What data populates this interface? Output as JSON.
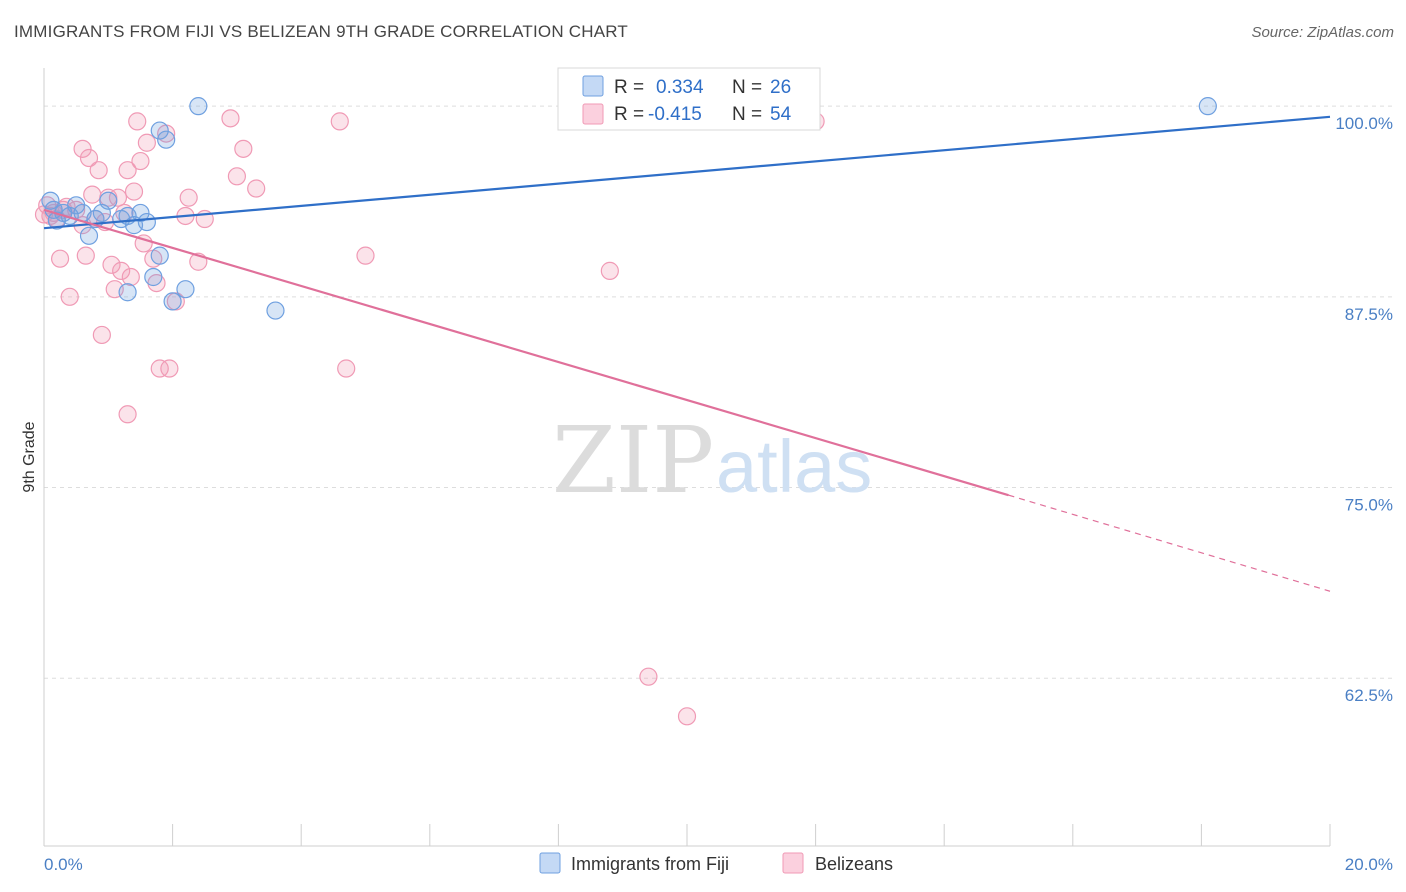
{
  "title": "IMMIGRANTS FROM FIJI VS BELIZEAN 9TH GRADE CORRELATION CHART",
  "source": "Source: ZipAtlas.com",
  "watermark": {
    "zip": "ZIP",
    "atlas": "atlas"
  },
  "colors": {
    "fiji": "#6fa0e0",
    "fiji_line": "#2f6fc8",
    "belize": "#f09ab5",
    "belize_line": "#e0709a",
    "tick_text": "#4a7fc4",
    "grid": "#dddddd"
  },
  "legend": {
    "fiji": {
      "r_label": "R =",
      "r_value": "0.334",
      "n_label": "N =",
      "n_value": "26"
    },
    "belize": {
      "r_label": "R =",
      "r_value": "-0.415",
      "n_label": "N =",
      "n_value": "54"
    }
  },
  "chart_data": {
    "type": "scatter",
    "title": "IMMIGRANTS FROM FIJI VS BELIZEAN 9TH GRADE CORRELATION CHART",
    "xlabel": "",
    "ylabel": "9th Grade",
    "xlim": [
      0,
      20
    ],
    "ylim": [
      51.5,
      102.5
    ],
    "x_tick_labels": {
      "min": "0.0%",
      "max": "20.0%"
    },
    "y_ticks": [
      {
        "value": 100,
        "label": "100.0%"
      },
      {
        "value": 87.5,
        "label": "87.5%"
      },
      {
        "value": 75,
        "label": "75.0%"
      },
      {
        "value": 62.5,
        "label": "62.5%"
      }
    ],
    "grid": true,
    "series": [
      {
        "name": "Immigrants from Fiji",
        "points": [
          [
            0.1,
            93.8
          ],
          [
            0.15,
            93.2
          ],
          [
            0.2,
            92.5
          ],
          [
            0.3,
            93.0
          ],
          [
            0.4,
            92.8
          ],
          [
            0.5,
            93.5
          ],
          [
            0.6,
            93.0
          ],
          [
            0.7,
            91.5
          ],
          [
            0.8,
            92.6
          ],
          [
            0.9,
            93.0
          ],
          [
            1.0,
            93.8
          ],
          [
            1.2,
            92.6
          ],
          [
            1.3,
            92.8
          ],
          [
            1.3,
            87.8
          ],
          [
            1.4,
            92.2
          ],
          [
            1.5,
            93.0
          ],
          [
            1.6,
            92.4
          ],
          [
            1.7,
            88.8
          ],
          [
            1.8,
            90.2
          ],
          [
            1.8,
            98.4
          ],
          [
            1.9,
            97.8
          ],
          [
            2.0,
            87.2
          ],
          [
            2.2,
            88.0
          ],
          [
            2.4,
            100.0
          ],
          [
            3.6,
            86.6
          ],
          [
            18.1,
            100.0
          ]
        ],
        "trend": {
          "x": [
            0,
            20
          ],
          "y": [
            92.0,
            99.3
          ],
          "style": "solid"
        }
      },
      {
        "name": "Belizeans",
        "points": [
          [
            0.05,
            93.5
          ],
          [
            0.1,
            92.8
          ],
          [
            0.15,
            93.0
          ],
          [
            0.2,
            92.6
          ],
          [
            0.25,
            90.0
          ],
          [
            0.3,
            93.2
          ],
          [
            0.35,
            93.4
          ],
          [
            0.4,
            87.5
          ],
          [
            0.5,
            93.2
          ],
          [
            0.6,
            92.2
          ],
          [
            0.6,
            97.2
          ],
          [
            0.65,
            90.2
          ],
          [
            0.7,
            96.6
          ],
          [
            0.75,
            94.2
          ],
          [
            0.8,
            92.6
          ],
          [
            0.85,
            95.8
          ],
          [
            0.9,
            85.0
          ],
          [
            0.95,
            92.4
          ],
          [
            1.0,
            94.0
          ],
          [
            1.05,
            89.6
          ],
          [
            1.1,
            88.0
          ],
          [
            1.15,
            94.0
          ],
          [
            1.2,
            89.2
          ],
          [
            1.25,
            93.0
          ],
          [
            1.3,
            95.8
          ],
          [
            1.3,
            79.8
          ],
          [
            1.35,
            88.8
          ],
          [
            1.4,
            94.4
          ],
          [
            1.45,
            99.0
          ],
          [
            1.5,
            96.4
          ],
          [
            1.55,
            91.0
          ],
          [
            1.6,
            97.6
          ],
          [
            1.7,
            90.0
          ],
          [
            1.75,
            88.4
          ],
          [
            1.8,
            82.8
          ],
          [
            1.9,
            98.2
          ],
          [
            1.95,
            82.8
          ],
          [
            2.05,
            87.2
          ],
          [
            2.2,
            92.8
          ],
          [
            2.25,
            94.0
          ],
          [
            2.4,
            89.8
          ],
          [
            2.5,
            92.6
          ],
          [
            2.9,
            99.2
          ],
          [
            3.0,
            95.4
          ],
          [
            3.1,
            97.2
          ],
          [
            3.3,
            94.6
          ],
          [
            4.6,
            99.0
          ],
          [
            4.7,
            82.8
          ],
          [
            5.0,
            90.2
          ],
          [
            8.8,
            89.2
          ],
          [
            9.4,
            62.6
          ],
          [
            10.0,
            60.0
          ],
          [
            12.0,
            99.0
          ],
          [
            0.0,
            92.9
          ]
        ],
        "trend": {
          "x": [
            0,
            15
          ],
          "y": [
            93.2,
            74.5
          ],
          "dashed_extension": {
            "x": [
              15,
              20
            ],
            "y": [
              74.5,
              68.2
            ]
          }
        }
      }
    ]
  },
  "bottom_legend": {
    "fiji_label": "Immigrants from Fiji",
    "belize_label": "Belizeans"
  }
}
